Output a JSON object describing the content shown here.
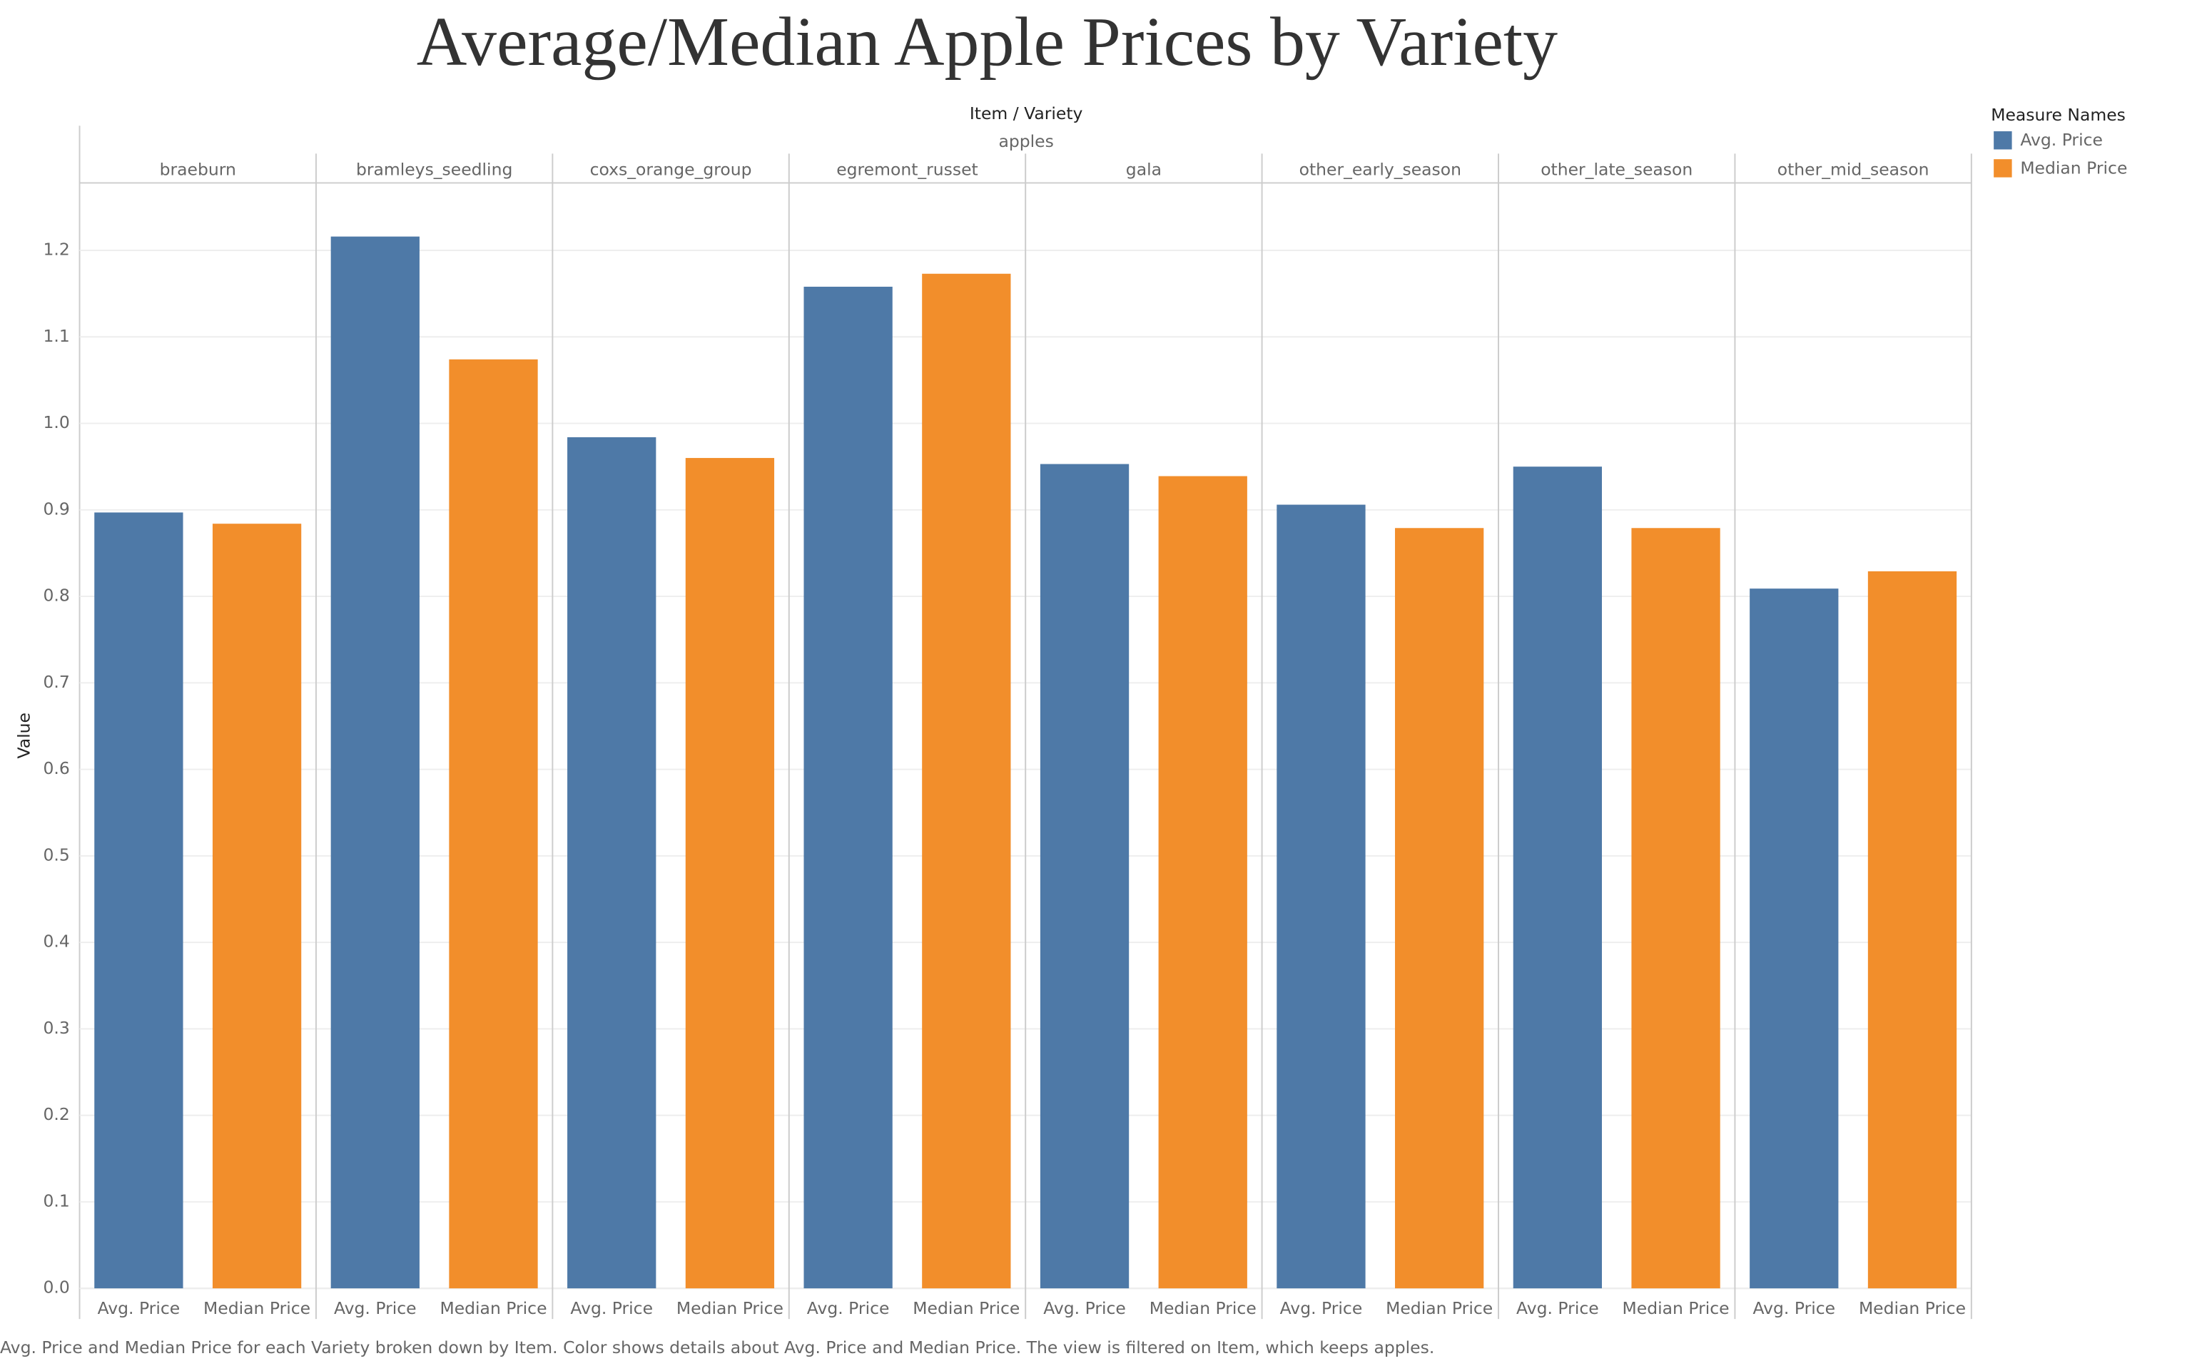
{
  "chart_data": {
    "type": "bar",
    "title": "Average/Median Apple Prices by Variety",
    "header_title": "Item / Variety",
    "group_label": "apples",
    "legend_title": "Measure Names",
    "ylabel": "Value",
    "caption": "Avg. Price and Median Price for each Variety broken down by Item.  Color shows details about Avg. Price and Median Price. The view is filtered on Item, which keeps apples.",
    "categories": [
      "braeburn",
      "bramleys_seedling",
      "coxs_orange_group",
      "egremont_russet",
      "gala",
      "other_early_season",
      "other_late_season",
      "other_mid_season"
    ],
    "series": [
      {
        "name": "Avg. Price",
        "color": "#4e79a7",
        "values": [
          0.897,
          1.216,
          0.984,
          1.158,
          0.953,
          0.906,
          0.95,
          0.809
        ]
      },
      {
        "name": "Median Price",
        "color": "#f28e2b",
        "values": [
          0.884,
          1.074,
          0.96,
          1.173,
          0.939,
          0.879,
          0.879,
          0.829
        ]
      }
    ],
    "ylim": [
      0,
      1.278
    ],
    "yticks": [
      {
        "value": 0,
        "label": "0.0"
      },
      0.1,
      0.2,
      0.3,
      0.4,
      0.5,
      0.6,
      0.7,
      0.8,
      0.9,
      {
        "value": 1,
        "label": "1.0"
      },
      1.1,
      1.2
    ],
    "grid": true
  }
}
